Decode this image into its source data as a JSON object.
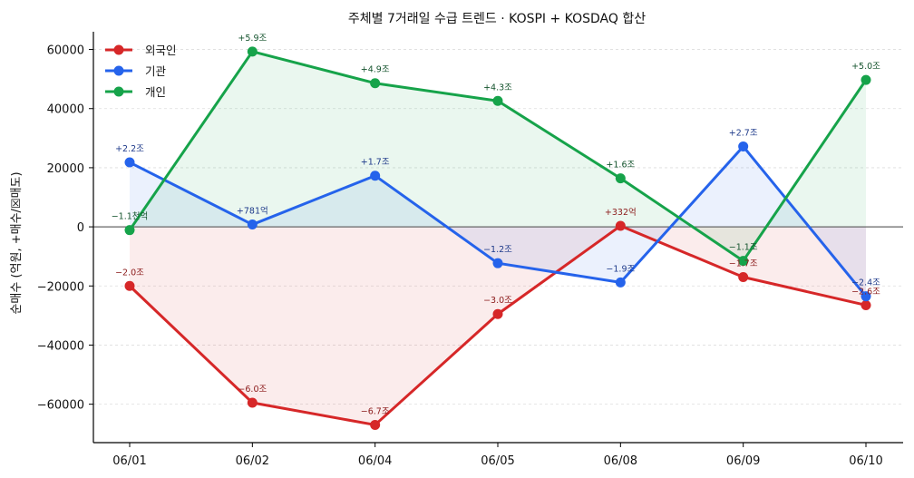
{
  "chart_data": {
    "type": "line",
    "title": "주체별 7거래일 수급 트렌드 · KOSPI + KOSDAQ 합산",
    "ylabel": "순매수 (억원, +매수/☒매도)",
    "xlabel": "",
    "categories": [
      "06/01",
      "06/02",
      "06/04",
      "06/05",
      "06/08",
      "06/09",
      "06/10"
    ],
    "ylim": [
      -73000,
      66000
    ],
    "yticks": [
      -60000,
      -40000,
      -20000,
      0,
      20000,
      40000,
      60000
    ],
    "ytick_labels": [
      "−60000",
      "−40000",
      "−20000",
      "0",
      "20000",
      "40000",
      "60000"
    ],
    "grid": "horizontal-dashed",
    "legend_position": "top-left",
    "series": [
      {
        "name": "외국인",
        "color": "#d62728",
        "label_color": "#8b1a1a",
        "values": [
          -20000,
          -59500,
          -67000,
          -29500,
          332,
          -17000,
          -26500
        ],
        "labels": [
          "−2.0조",
          "−6.0조",
          "−6.7조",
          "−3.0조",
          "+332억",
          "−1.7조",
          "−2.6조"
        ]
      },
      {
        "name": "기관",
        "color": "#2563eb",
        "label_color": "#1e3a8a",
        "values": [
          21800,
          781,
          17300,
          -12300,
          -18800,
          27200,
          -23500
        ],
        "labels": [
          "+2.2조",
          "+781억",
          "+1.7조",
          "−1.2조",
          "−1.9조",
          "+2.7조",
          "−2.4조"
        ]
      },
      {
        "name": "개인",
        "color": "#16a34a",
        "label_color": "#14532d",
        "values": [
          -1100,
          59300,
          48600,
          42600,
          16400,
          -11500,
          49700
        ],
        "labels": [
          "−1.1천억",
          "+5.9조",
          "+4.9조",
          "+4.3조",
          "+1.6조",
          "−1.1조",
          "+5.0조"
        ]
      }
    ]
  }
}
